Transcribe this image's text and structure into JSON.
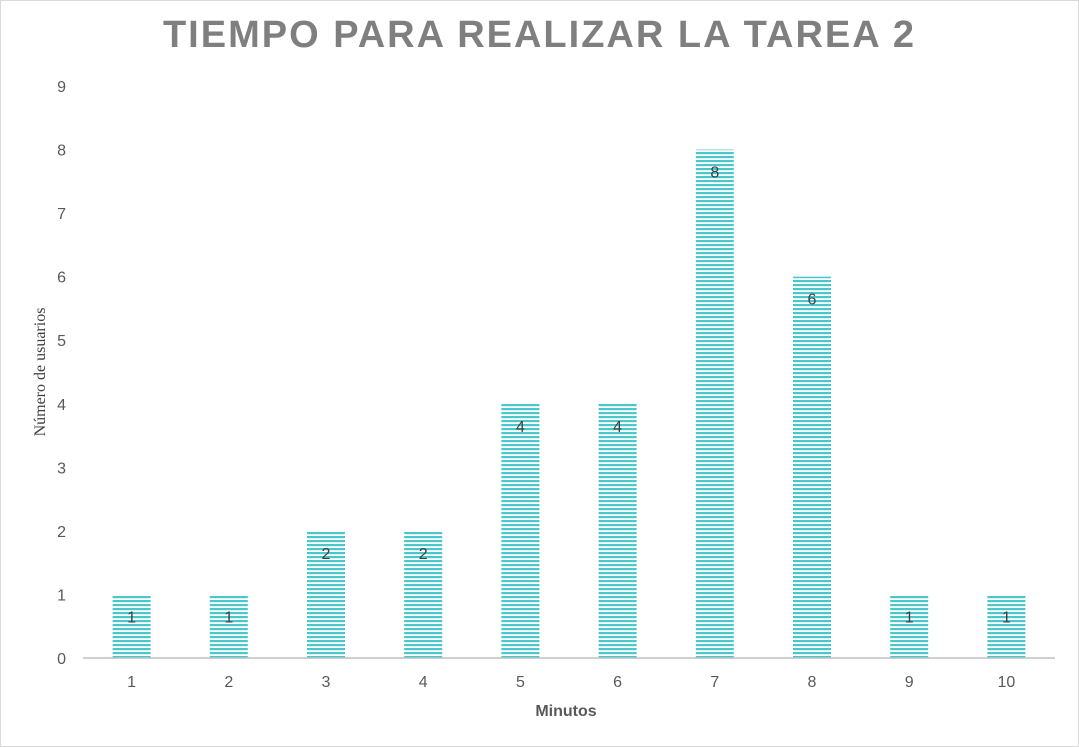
{
  "chart_data": {
    "type": "bar",
    "title": "TIEMPO PARA REALIZAR LA TAREA 2",
    "xlabel": "Minutos",
    "ylabel": "Número de usuarios",
    "categories": [
      "1",
      "2",
      "3",
      "4",
      "5",
      "6",
      "7",
      "8",
      "9",
      "10"
    ],
    "values": [
      1,
      1,
      2,
      2,
      4,
      4,
      8,
      6,
      1,
      1
    ],
    "ylim": [
      0,
      9
    ],
    "yticks": [
      0,
      1,
      2,
      3,
      4,
      5,
      6,
      7,
      8,
      9
    ],
    "grid": false,
    "data_labels": true,
    "bar_color": "#4bc6c9",
    "bar_stripe_color": "#ffffff"
  }
}
